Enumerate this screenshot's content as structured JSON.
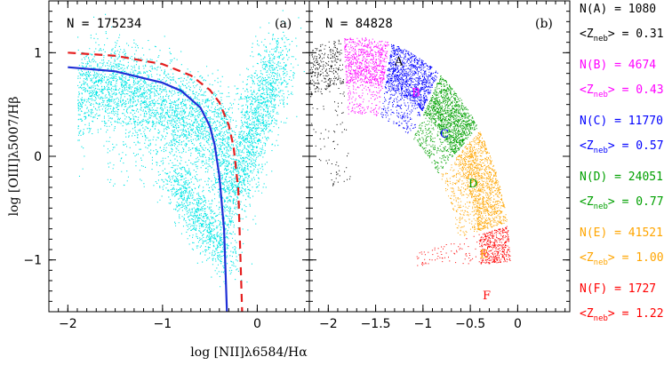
{
  "colors": {
    "cloud": "#00e5e5",
    "solid_curve": "#1f2fd6",
    "dashed_curve": "#e51f1f",
    "A": "#000000",
    "B": "#ff00ff",
    "C": "#0000ff",
    "D": "#00a000",
    "E": "#ffa500",
    "F": "#ff0000"
  },
  "chart_data": [
    {
      "type": "scatter",
      "panel_tag": "(a)",
      "count_text": "N = 175234",
      "xlabel": "log [NII]λ6584/Hα",
      "ylabel": "log [OIII]λ5007/Hβ",
      "xlim": [
        -2.2,
        0.55
      ],
      "ylim": [
        -1.5,
        1.5
      ],
      "xticks": [
        -2,
        -1,
        0
      ],
      "xtick_labels": [
        "−2",
        "−1",
        "0"
      ],
      "yticks": [
        -1,
        0,
        1
      ],
      "ytick_labels": [
        "−1",
        "0",
        "1"
      ],
      "point_count": 175234,
      "series": [
        {
          "style": "solid",
          "x": [
            -2.0,
            -1.5,
            -1.0,
            -0.8,
            -0.6,
            -0.5,
            -0.45,
            -0.4,
            -0.35,
            -0.32
          ],
          "y": [
            0.86,
            0.82,
            0.71,
            0.63,
            0.47,
            0.29,
            0.11,
            -0.19,
            -0.71,
            -1.5
          ]
        },
        {
          "style": "dashed",
          "x": [
            -2.0,
            -1.5,
            -1.0,
            -0.7,
            -0.5,
            -0.4,
            -0.3,
            -0.25,
            -0.2,
            -0.16
          ],
          "y": [
            1.0,
            0.97,
            0.89,
            0.78,
            0.64,
            0.52,
            0.3,
            0.09,
            -0.32,
            -1.5
          ]
        }
      ],
      "grid": false
    },
    {
      "type": "scatter",
      "panel_tag": "(b)",
      "count_text": "N = 84828",
      "xlim": [
        -2.2,
        0.55
      ],
      "ylim": [
        -1.5,
        1.5
      ],
      "xticks": [
        -2,
        -1.5,
        -1,
        -0.5,
        0
      ],
      "xtick_labels": [
        "−2",
        "−1.5",
        "−1",
        "−0.5",
        "0"
      ],
      "groups": [
        {
          "label": "A",
          "count_text": "N(A) = 1080",
          "z_value": "0.31",
          "count": 1080
        },
        {
          "label": "B",
          "count_text": "N(B) = 4674",
          "z_value": "0.43",
          "count": 4674
        },
        {
          "label": "C",
          "count_text": "N(C) = 11770",
          "z_value": "0.57",
          "count": 11770
        },
        {
          "label": "D",
          "count_text": "N(D) = 24051",
          "z_value": "0.77",
          "count": 24051
        },
        {
          "label": "E",
          "count_text": "N(E) = 41521",
          "z_value": "1.00",
          "count": 41521
        },
        {
          "label": "F",
          "count_text": "N(F) = 1727",
          "z_value": "1.22",
          "count": 1727
        }
      ],
      "grid": false
    }
  ],
  "legend": {
    "z_prefix": "<Z",
    "z_sub": "neb",
    "z_suffix": "> = "
  }
}
